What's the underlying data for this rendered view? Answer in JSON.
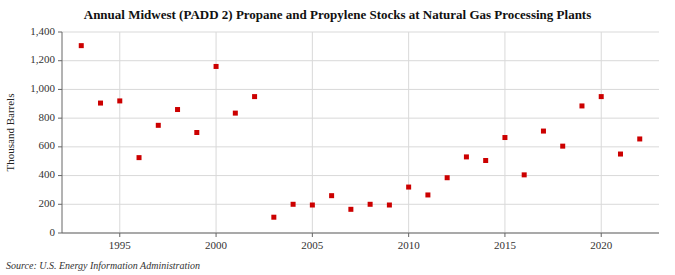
{
  "chart_data": {
    "type": "scatter",
    "title": "Annual Midwest (PADD 2) Propane and Propylene Stocks at Natural Gas Processing Plants",
    "ylabel": "Thousand Barrels",
    "source": "Source: U.S. Energy Information Administration",
    "x": [
      1993,
      1994,
      1995,
      1996,
      1997,
      1998,
      1999,
      2000,
      2001,
      2002,
      2003,
      2004,
      2005,
      2006,
      2007,
      2008,
      2009,
      2010,
      2011,
      2012,
      2013,
      2014,
      2015,
      2016,
      2017,
      2018,
      2019,
      2020,
      2021,
      2022
    ],
    "values": [
      1305,
      905,
      920,
      525,
      750,
      860,
      700,
      1160,
      835,
      950,
      110,
      200,
      195,
      260,
      165,
      200,
      195,
      320,
      265,
      385,
      530,
      505,
      665,
      405,
      710,
      605,
      885,
      950,
      550,
      655
    ],
    "color": "#cc0000",
    "marker": "square",
    "xlim": [
      1992,
      2023
    ],
    "ylim": [
      0,
      1400
    ],
    "xticks": [
      1995,
      2000,
      2005,
      2010,
      2015,
      2020
    ],
    "yticks": [
      0,
      200,
      400,
      600,
      800,
      {
        "value": 1000,
        "label": "1,000"
      },
      {
        "value": 1200,
        "label": "1,200"
      },
      {
        "value": 1400,
        "label": "1,400"
      }
    ],
    "grid": true
  }
}
